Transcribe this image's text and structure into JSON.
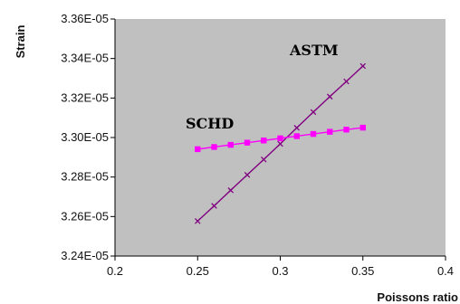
{
  "chart_data": {
    "type": "line",
    "xlabel": "Poissons ratio",
    "ylabel": "Strain",
    "xlim": [
      0.2,
      0.4
    ],
    "ylim": [
      3.24e-05,
      3.36e-05
    ],
    "x_ticks": [
      "0.2",
      "0.25",
      "0.3",
      "0.35",
      "0.4"
    ],
    "y_ticks": [
      "3.24E-05",
      "3.26E-05",
      "3.28E-05",
      "3.30E-05",
      "3.32E-05",
      "3.34E-05",
      "3.36E-05"
    ],
    "plot_background": "#c0c0c0",
    "grid": false,
    "series": [
      {
        "name": "ASTM",
        "color": "#800080",
        "marker": "x",
        "x": [
          0.25,
          0.26,
          0.27,
          0.28,
          0.29,
          0.3,
          0.31,
          0.32,
          0.33,
          0.34,
          0.35
        ],
        "values": [
          3.2577e-05,
          3.2654e-05,
          3.2733e-05,
          3.2811e-05,
          3.2889e-05,
          3.2968e-05,
          3.3049e-05,
          3.3129e-05,
          3.3207e-05,
          3.3284e-05,
          3.3362e-05
        ]
      },
      {
        "name": "SCHD",
        "color": "#ff00ff",
        "marker": "square",
        "x": [
          0.25,
          0.26,
          0.27,
          0.28,
          0.29,
          0.3,
          0.31,
          0.32,
          0.33,
          0.34,
          0.35
        ],
        "values": [
          3.2941e-05,
          3.2952e-05,
          3.2963e-05,
          3.2974e-05,
          3.2985e-05,
          3.2996e-05,
          3.3007e-05,
          3.3018e-05,
          3.3029e-05,
          3.304e-05,
          3.305e-05
        ]
      }
    ]
  }
}
